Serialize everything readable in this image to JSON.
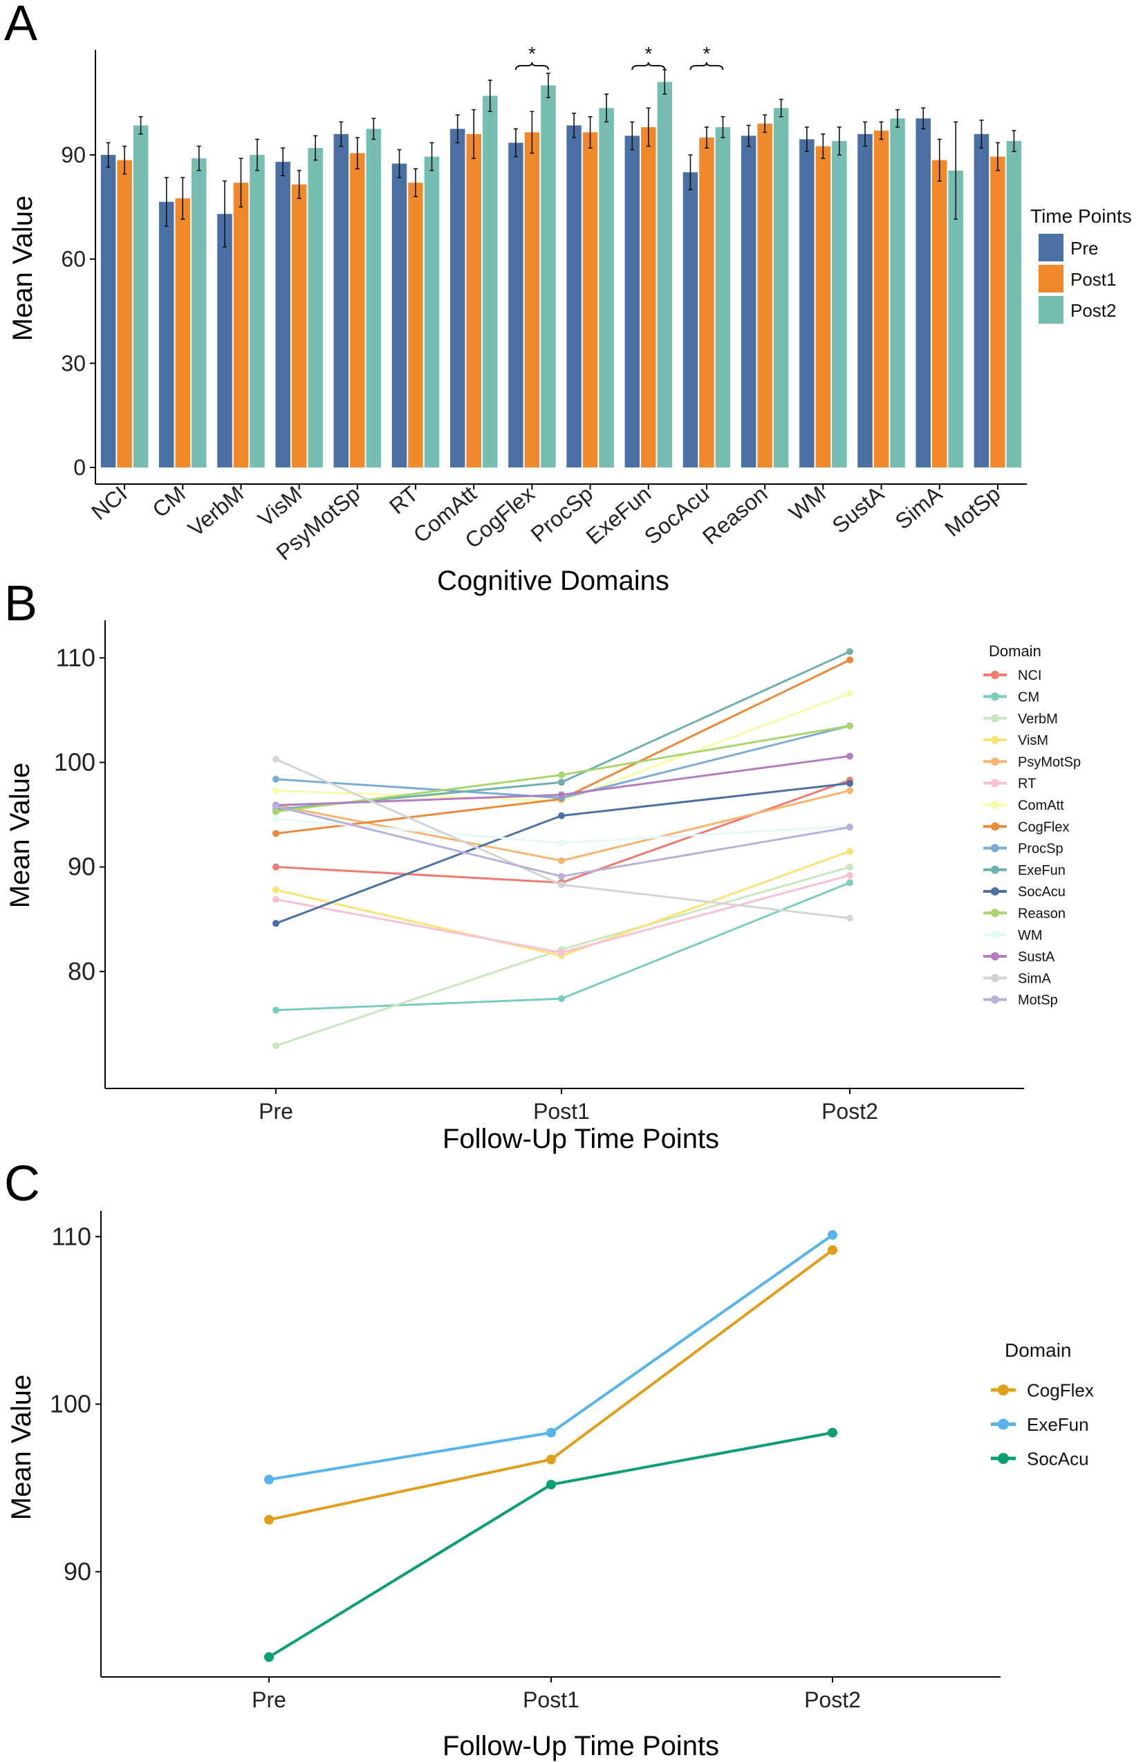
{
  "chart_data": [
    {
      "panel": "A",
      "type": "bar",
      "xlabel": "Cognitive Domains",
      "ylabel": "Mean Value",
      "ylim": [
        0,
        120
      ],
      "yticks": [
        0,
        30,
        60,
        90
      ],
      "categories": [
        "NCI",
        "CM",
        "VerbM",
        "VisM",
        "PsyMotSp",
        "RT",
        "ComAtt",
        "CogFlex",
        "ProcSp",
        "ExeFun",
        "SocAcu",
        "Reason",
        "WM",
        "SustA",
        "SimA",
        "MotSp"
      ],
      "legend_title": "Time Points",
      "series": [
        {
          "name": "Pre",
          "color": "#4a70a4",
          "values": [
            90,
            76.5,
            73,
            88,
            96,
            87.5,
            97.5,
            93.5,
            98.5,
            95.5,
            85,
            95.5,
            94.5,
            96,
            100.5,
            96
          ],
          "errors": [
            3.5,
            7,
            9.5,
            4,
            3.5,
            4,
            4,
            4,
            3.5,
            4,
            5,
            3,
            3.5,
            3.5,
            3,
            4
          ]
        },
        {
          "name": "Post1",
          "color": "#f0892b",
          "values": [
            88.5,
            77.5,
            82,
            81.5,
            90.5,
            82,
            96,
            96.5,
            96.5,
            98,
            95,
            99,
            92.5,
            97,
            88.5,
            89.5
          ],
          "errors": [
            4,
            6,
            7,
            4,
            4.5,
            4,
            7,
            6,
            4.5,
            5.5,
            3,
            2.5,
            3.5,
            2.5,
            6,
            4
          ]
        },
        {
          "name": "Post2",
          "color": "#78bdb2",
          "values": [
            98.5,
            89,
            90,
            92,
            97.5,
            89.5,
            107,
            110,
            103.5,
            111,
            98,
            103.5,
            94,
            100.5,
            85.5,
            94
          ],
          "errors": [
            2.5,
            3.5,
            4.5,
            3.5,
            3,
            4,
            4.5,
            3.5,
            4,
            3.5,
            3,
            2.5,
            4,
            2.5,
            14,
            3
          ]
        }
      ],
      "significance": [
        {
          "category": "CogFlex",
          "label": "*"
        },
        {
          "category": "ExeFun",
          "label": "*"
        },
        {
          "category": "SocAcu",
          "label": "*"
        }
      ]
    },
    {
      "panel": "B",
      "type": "line",
      "xlabel": "Follow-Up Time Points",
      "ylabel": "Mean Value",
      "x": [
        "Pre",
        "Post1",
        "Post2"
      ],
      "ylim": [
        70,
        113
      ],
      "yticks": [
        80,
        90,
        100,
        110
      ],
      "legend_title": "Domain",
      "series": [
        {
          "name": "NCI",
          "color": "#ef7b71",
          "values": [
            90,
            88.5,
            98.3
          ]
        },
        {
          "name": "CM",
          "color": "#78cdbf",
          "values": [
            76.3,
            77.4,
            88.5
          ]
        },
        {
          "name": "VerbM",
          "color": "#c9e7be",
          "values": [
            72.9,
            82.1,
            90
          ]
        },
        {
          "name": "VisM",
          "color": "#fbe277",
          "values": [
            87.8,
            81.5,
            91.5
          ]
        },
        {
          "name": "PsyMotSp",
          "color": "#f7b46e",
          "values": [
            95.9,
            90.6,
            97.3
          ]
        },
        {
          "name": "RT",
          "color": "#f8c0d5",
          "values": [
            86.9,
            81.8,
            89.2
          ]
        },
        {
          "name": "ComAtt",
          "color": "#f8fcaa",
          "values": [
            97.3,
            96.3,
            106.6
          ]
        },
        {
          "name": "CogFlex",
          "color": "#ea8a3a",
          "values": [
            93.2,
            96.5,
            109.8
          ]
        },
        {
          "name": "ProcSp",
          "color": "#78acd2",
          "values": [
            98.4,
            96.6,
            103.5
          ]
        },
        {
          "name": "ExeFun",
          "color": "#6fb0ad",
          "values": [
            95.5,
            98.1,
            110.6
          ]
        },
        {
          "name": "SocAcu",
          "color": "#4a71a2",
          "values": [
            84.6,
            94.9,
            98
          ]
        },
        {
          "name": "Reason",
          "color": "#a9d56e",
          "values": [
            95.3,
            98.8,
            103.5
          ]
        },
        {
          "name": "WM",
          "color": "#e4f8f8",
          "values": [
            94.6,
            92.3,
            93.9
          ]
        },
        {
          "name": "SustA",
          "color": "#b47bc0",
          "values": [
            95.9,
            96.9,
            100.6
          ]
        },
        {
          "name": "SimA",
          "color": "#d4d4d4",
          "values": [
            100.3,
            88.3,
            85.1
          ]
        },
        {
          "name": "MotSp",
          "color": "#b7b1d9",
          "values": [
            95.8,
            89.1,
            93.8
          ]
        }
      ]
    },
    {
      "panel": "C",
      "type": "line",
      "xlabel": "Follow-Up Time Points",
      "ylabel": "Mean Value",
      "x": [
        "Pre",
        "Post1",
        "Post2"
      ],
      "ylim": [
        84.5,
        111.5
      ],
      "yticks": [
        90,
        100,
        110
      ],
      "legend_title": "Domain",
      "series": [
        {
          "name": "CogFlex",
          "color": "#e09f1a",
          "values": [
            93.1,
            96.7,
            109.2
          ]
        },
        {
          "name": "ExeFun",
          "color": "#56b4e9",
          "values": [
            95.5,
            98.3,
            110.1
          ]
        },
        {
          "name": "SocAcu",
          "color": "#0a9e73",
          "values": [
            84.9,
            95.2,
            98.3
          ]
        }
      ]
    }
  ]
}
